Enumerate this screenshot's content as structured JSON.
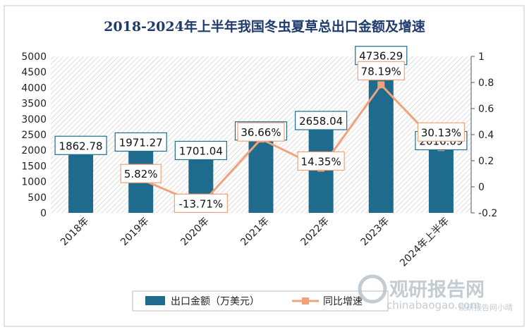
{
  "chart_data": {
    "type": "bar+line",
    "title": "2018-2024年上半年我国冬虫夏草总出口金额及增速",
    "categories": [
      "2018年",
      "2019年",
      "2020年",
      "2021年",
      "2022年",
      "2023年",
      "2024年上半年"
    ],
    "series": [
      {
        "name": "出口金额（万美元）",
        "type": "bar",
        "axis": "left",
        "values": [
          1862.78,
          1971.27,
          1701.04,
          2324.56,
          2658.04,
          4736.29,
          2016.09
        ],
        "labels": [
          "1862.78",
          "1971.27",
          "1701.04",
          "2324.56",
          "2658.04",
          "4736.29",
          "2016.09"
        ],
        "color": "#1f6b8e"
      },
      {
        "name": "同比增速",
        "type": "line",
        "axis": "right",
        "values": [
          null,
          0.0582,
          -0.1371,
          0.3666,
          0.1435,
          0.7819,
          0.3013
        ],
        "labels": [
          "",
          "5.82%",
          "-13.71%",
          "36.66%",
          "14.35%",
          "78.19%",
          "30.13%"
        ],
        "color": "#f0a27a"
      }
    ],
    "y_left": {
      "min": 0,
      "max": 5000,
      "ticks": [
        "0",
        "500",
        "1000",
        "1500",
        "2000",
        "2500",
        "3000",
        "3500",
        "4000",
        "4500",
        "5000"
      ]
    },
    "y_right": {
      "min": -0.2,
      "max": 1,
      "ticks": [
        "-0.2",
        "0",
        "0.2",
        "0.4",
        "0.6",
        "0.8",
        "1"
      ]
    },
    "legend_position": "bottom",
    "grid": false
  },
  "watermark": {
    "brand": "观研报告网",
    "url": "chinabaogao.com",
    "corner": "观研报告网小晴"
  }
}
